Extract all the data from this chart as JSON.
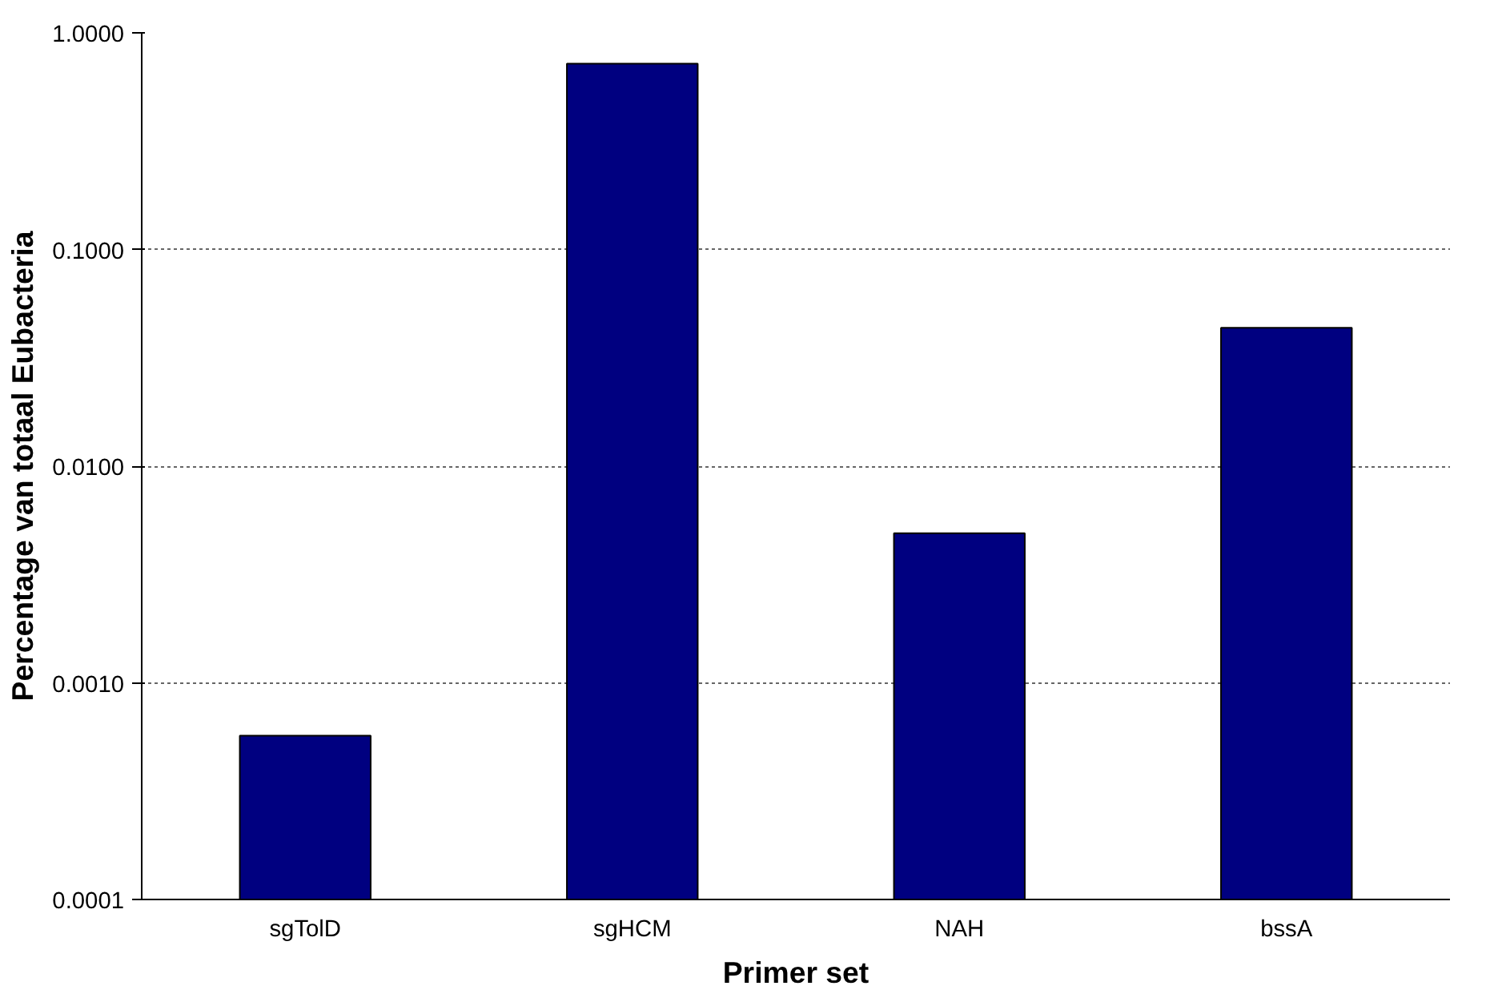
{
  "chart_data": {
    "type": "bar",
    "xlabel": "Primer set",
    "ylabel": "Percentage van totaal Eubacteria",
    "categories": [
      "sgTolD",
      "sgHCM",
      "NAH",
      "bssA"
    ],
    "values": [
      0.00057,
      0.72,
      0.0049,
      0.0435
    ],
    "color": "#000080",
    "log": "y",
    "ylim": [
      0.0001,
      1
    ],
    "yticks": [
      {
        "value": 0.0001,
        "label": "0.0001"
      },
      {
        "value": 0.001,
        "label": "0.0010"
      },
      {
        "value": 0.01,
        "label": "0.0100"
      },
      {
        "value": 0.1,
        "label": "0.1000"
      },
      {
        "value": 1,
        "label": "1.0000"
      }
    ],
    "grid": "y"
  }
}
